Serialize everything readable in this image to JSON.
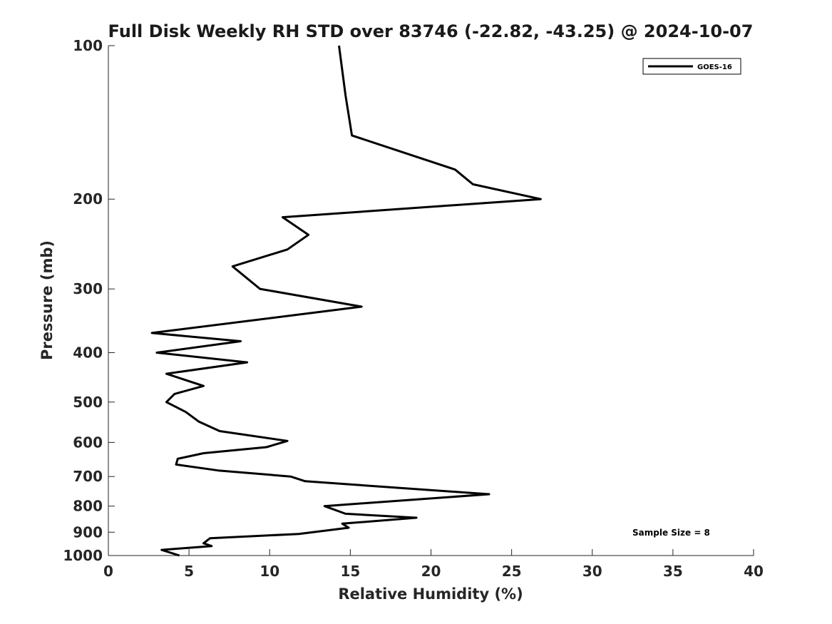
{
  "chart_data": {
    "type": "line",
    "title": "Full Disk Weekly RH STD over 83746 (-22.82, -43.25) @ 2024-10-07",
    "xlabel": "Relative Humidity (%)",
    "ylabel": "Pressure (mb)",
    "xlim": [
      0,
      40
    ],
    "ylim": [
      1000,
      100
    ],
    "yscale": "log",
    "y_reversed": true,
    "grid": false,
    "legend_position": "top-right",
    "xticks": [
      "0",
      "5",
      "10",
      "15",
      "20",
      "25",
      "30",
      "35",
      "40"
    ],
    "xtick_values": [
      0,
      5,
      10,
      15,
      20,
      25,
      30,
      35,
      40
    ],
    "yticks": [
      "100",
      "200",
      "300",
      "400",
      "500",
      "600",
      "700",
      "800",
      "900",
      "1000"
    ],
    "ytick_values": [
      100,
      200,
      300,
      400,
      500,
      600,
      700,
      800,
      900,
      1000
    ],
    "annotation": "Sample Size = 8",
    "series": [
      {
        "name": "GOES-16",
        "color": "#000000",
        "points": [
          [
            14.3,
            100
          ],
          [
            14.7,
            125
          ],
          [
            15.1,
            150
          ],
          [
            21.5,
            175
          ],
          [
            22.6,
            187
          ],
          [
            26.8,
            200
          ],
          [
            10.8,
            217
          ],
          [
            12.4,
            235
          ],
          [
            11.1,
            251
          ],
          [
            7.7,
            271
          ],
          [
            9.4,
            300
          ],
          [
            15.7,
            325
          ],
          [
            2.7,
            366
          ],
          [
            8.2,
            380
          ],
          [
            3.0,
            400
          ],
          [
            8.6,
            418
          ],
          [
            3.6,
            440
          ],
          [
            5.9,
            465
          ],
          [
            4.1,
            482
          ],
          [
            3.6,
            500
          ],
          [
            4.8,
            523
          ],
          [
            5.6,
            546
          ],
          [
            6.9,
            570
          ],
          [
            11.1,
            596
          ],
          [
            9.8,
            613
          ],
          [
            5.9,
            630
          ],
          [
            4.3,
            646
          ],
          [
            4.2,
            663
          ],
          [
            6.8,
            681
          ],
          [
            11.3,
            700
          ],
          [
            12.2,
            715
          ],
          [
            23.6,
            758
          ],
          [
            13.4,
            800
          ],
          [
            14.7,
            828
          ],
          [
            19.1,
            843
          ],
          [
            14.5,
            866
          ],
          [
            14.9,
            882
          ],
          [
            11.8,
            907
          ],
          [
            6.3,
            925
          ],
          [
            5.9,
            946
          ],
          [
            6.4,
            958
          ],
          [
            3.3,
            975
          ],
          [
            4.4,
            1000
          ]
        ]
      }
    ]
  }
}
